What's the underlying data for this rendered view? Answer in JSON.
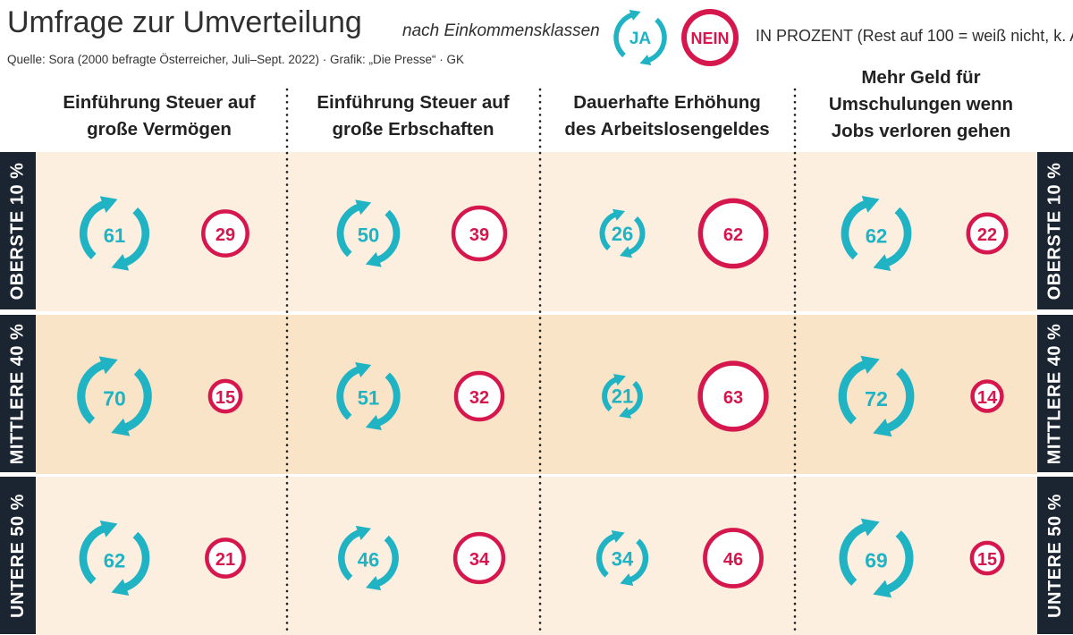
{
  "header": {
    "title": "Umfrage zur Umverteilung",
    "subtitle": "nach Einkommensklassen",
    "source": "Quelle: Sora (2000 befragte Österreicher, Juli–Sept. 2022) · Grafik: „Die Presse“ · GK",
    "unit": "IN PROZENT (Rest auf 100 = weiß nicht, k. A.)"
  },
  "legend": {
    "ja_label": "JA",
    "nein_label": "NEIN",
    "ja_icon": "circular-arrows-icon",
    "nein_icon": "ring-icon"
  },
  "colors": {
    "ja": "#1fb3c4",
    "nein": "#d6174e",
    "row_light": "#fcefe0",
    "row_dark": "#f9e4c8",
    "side_label_bg": "#1b2431"
  },
  "chart_data": {
    "type": "proportional-symbol",
    "columns": [
      [
        "Einführung Steuer auf",
        "große Vermögen"
      ],
      [
        "Einführung Steuer auf",
        "große Erbschaften"
      ],
      [
        "Dauerhafte Erhöhung",
        "des Arbeitslosengeldes"
      ],
      [
        "Mehr Geld für",
        "Umschulungen wenn",
        "Jobs verloren gehen"
      ]
    ],
    "rows": [
      "OBERSTE 10 %",
      "MITTLERE 40 %",
      "UNTERE 50 %"
    ],
    "series": [
      {
        "name": "JA",
        "values": [
          [
            61,
            50,
            26,
            62
          ],
          [
            70,
            51,
            21,
            72
          ],
          [
            62,
            46,
            34,
            69
          ]
        ]
      },
      {
        "name": "NEIN",
        "values": [
          [
            29,
            39,
            62,
            22
          ],
          [
            15,
            32,
            63,
            14
          ],
          [
            21,
            34,
            46,
            15
          ]
        ]
      }
    ]
  }
}
